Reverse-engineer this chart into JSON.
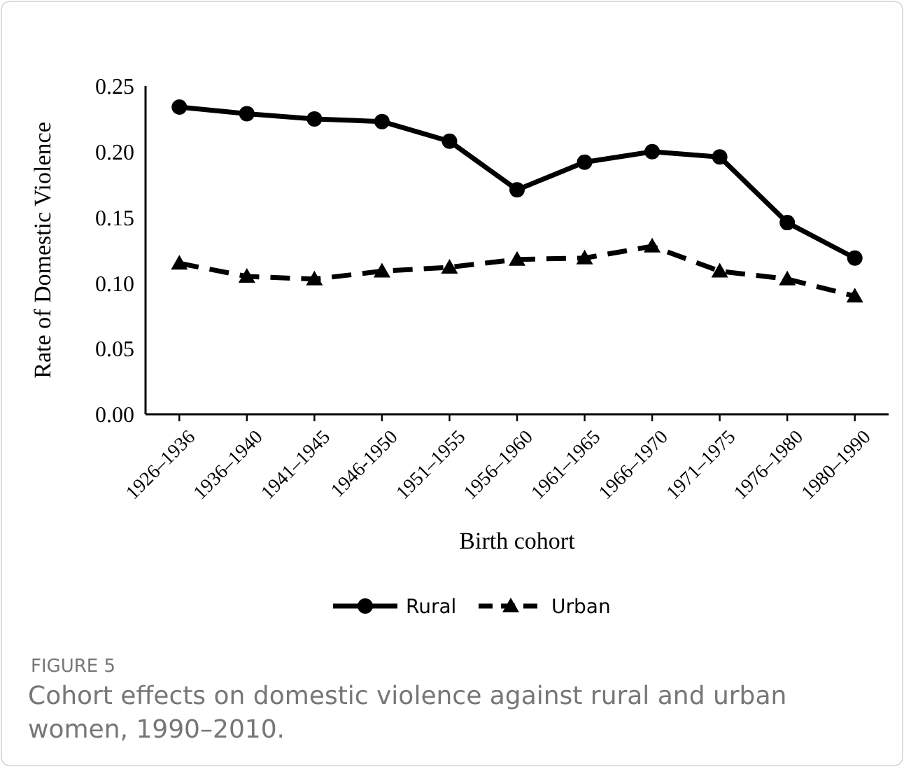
{
  "chart_data": {
    "type": "line",
    "title": "FIGURE 5",
    "subtitle": "Cohort effects on domestic violence against rural and urban women, 1990–2010.",
    "xlabel": "Birth cohort",
    "ylabel": "Rate of Domestic Violence",
    "categories": [
      "1926–1936",
      "1936–1940",
      "1941–1945",
      "1946-1950",
      "1951–1955",
      "1956–1960",
      "1961–1965",
      "1966–1970",
      "1971–1975",
      "1976–1980",
      "1980–1990"
    ],
    "series": [
      {
        "name": "Rural",
        "color": "#000000",
        "marker": "circle",
        "line_style": "solid",
        "values": [
          0.234,
          0.229,
          0.225,
          0.223,
          0.208,
          0.171,
          0.192,
          0.2,
          0.196,
          0.146,
          0.119
        ]
      },
      {
        "name": "Urban",
        "color": "#000000",
        "marker": "triangle",
        "line_style": "dashed",
        "values": [
          0.115,
          0.105,
          0.103,
          0.109,
          0.112,
          0.118,
          0.119,
          0.128,
          0.109,
          0.103,
          0.09
        ]
      }
    ],
    "ylim": [
      0,
      0.25
    ],
    "yticks": [
      {
        "value": 0,
        "label": "0.00"
      },
      {
        "value": 0.05,
        "label": "0.05"
      },
      {
        "value": 0.1,
        "label": "0.10"
      },
      {
        "value": 0.15,
        "label": "0.15"
      },
      {
        "value": 0.2,
        "label": "0.20"
      },
      {
        "value": 0.25,
        "label": "0.25"
      }
    ],
    "grid": false,
    "legend": "bottom"
  }
}
